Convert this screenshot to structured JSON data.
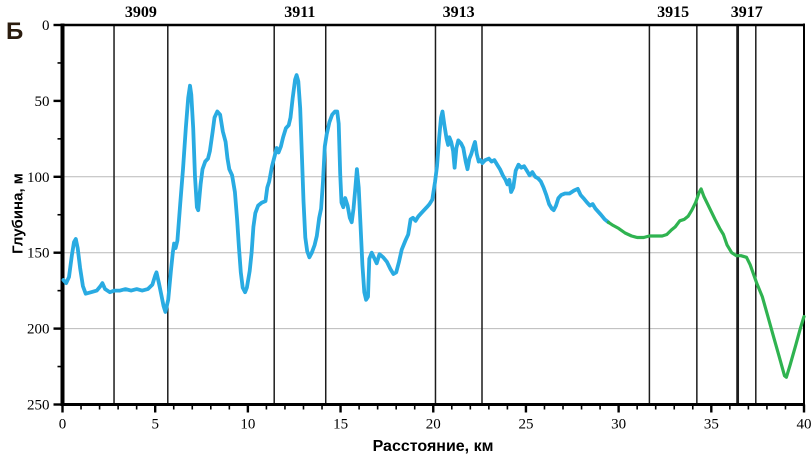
{
  "panel_label": "Б",
  "colors": {
    "blue": "#29abe2",
    "green": "#2fb350",
    "grid": "#b9b9b9",
    "axis": "#000000",
    "section_line": "#1c1c1c"
  },
  "chart_data": {
    "type": "line",
    "xlabel": "Расстояние, км",
    "ylabel": "Глубина, м",
    "xlim": [
      0,
      40
    ],
    "ylim": [
      0,
      250
    ],
    "y_inverted": true,
    "x_major_ticks": [
      0,
      5,
      10,
      15,
      20,
      25,
      30,
      35,
      40
    ],
    "x_minor_step": 1,
    "y_major_ticks": [
      0,
      50,
      100,
      150,
      200,
      250
    ],
    "y_minor_ticks": [
      25,
      75,
      125,
      175,
      225
    ],
    "gridlines_y": [
      100,
      150,
      200
    ],
    "legend": "none",
    "section_lines": [
      {
        "km": 2.78,
        "bold": false
      },
      {
        "km": 5.68,
        "bold": false
      },
      {
        "km": 11.42,
        "bold": false
      },
      {
        "km": 14.2,
        "bold": false
      },
      {
        "km": 20.12,
        "bold": false
      },
      {
        "km": 22.63,
        "bold": false
      },
      {
        "km": 31.66,
        "bold": false
      },
      {
        "km": 34.22,
        "bold": false
      },
      {
        "km": 36.42,
        "bold": true
      },
      {
        "km": 37.4,
        "bold": false
      }
    ],
    "section_labels": [
      {
        "label": "3909",
        "km": 4.23
      },
      {
        "label": "3911",
        "km": 12.8
      },
      {
        "label": "3913",
        "km": 21.37
      },
      {
        "label": "3915",
        "km": 32.94
      },
      {
        "label": "3917",
        "km": 36.91
      }
    ],
    "series": [
      {
        "name": "depth-profile-measured",
        "color_key": "blue",
        "width": 3.8,
        "points": [
          [
            0.05,
            168
          ],
          [
            0.2,
            170
          ],
          [
            0.35,
            166
          ],
          [
            0.5,
            152
          ],
          [
            0.62,
            143
          ],
          [
            0.72,
            141
          ],
          [
            0.82,
            147
          ],
          [
            0.95,
            160
          ],
          [
            1.1,
            172
          ],
          [
            1.25,
            177
          ],
          [
            1.55,
            176
          ],
          [
            1.85,
            175
          ],
          [
            2.05,
            172
          ],
          [
            2.15,
            170
          ],
          [
            2.3,
            174
          ],
          [
            2.55,
            176
          ],
          [
            2.8,
            175
          ],
          [
            3.1,
            175
          ],
          [
            3.4,
            174
          ],
          [
            3.7,
            175
          ],
          [
            4.0,
            174
          ],
          [
            4.3,
            175
          ],
          [
            4.6,
            174
          ],
          [
            4.85,
            171
          ],
          [
            5.0,
            165
          ],
          [
            5.07,
            163
          ],
          [
            5.2,
            170
          ],
          [
            5.32,
            177
          ],
          [
            5.45,
            185
          ],
          [
            5.55,
            189
          ],
          [
            5.7,
            181
          ],
          [
            5.85,
            162
          ],
          [
            5.95,
            150
          ],
          [
            6.02,
            144
          ],
          [
            6.1,
            147
          ],
          [
            6.2,
            142
          ],
          [
            6.35,
            118
          ],
          [
            6.5,
            95
          ],
          [
            6.65,
            68
          ],
          [
            6.78,
            48
          ],
          [
            6.88,
            40
          ],
          [
            6.95,
            46
          ],
          [
            7.05,
            68
          ],
          [
            7.15,
            100
          ],
          [
            7.25,
            120
          ],
          [
            7.32,
            122
          ],
          [
            7.45,
            105
          ],
          [
            7.55,
            95
          ],
          [
            7.7,
            90
          ],
          [
            7.85,
            88
          ],
          [
            7.95,
            83
          ],
          [
            8.1,
            70
          ],
          [
            8.2,
            61
          ],
          [
            8.35,
            57
          ],
          [
            8.5,
            59
          ],
          [
            8.65,
            70
          ],
          [
            8.8,
            77
          ],
          [
            8.9,
            88
          ],
          [
            9.0,
            95
          ],
          [
            9.15,
            99
          ],
          [
            9.3,
            110
          ],
          [
            9.42,
            128
          ],
          [
            9.52,
            147
          ],
          [
            9.62,
            163
          ],
          [
            9.72,
            173
          ],
          [
            9.85,
            176
          ],
          [
            9.95,
            173
          ],
          [
            10.1,
            162
          ],
          [
            10.2,
            150
          ],
          [
            10.3,
            133
          ],
          [
            10.4,
            124
          ],
          [
            10.55,
            119
          ],
          [
            10.75,
            117
          ],
          [
            10.95,
            116
          ],
          [
            11.05,
            107
          ],
          [
            11.15,
            103
          ],
          [
            11.3,
            93
          ],
          [
            11.45,
            86
          ],
          [
            11.55,
            81
          ],
          [
            11.65,
            84
          ],
          [
            11.78,
            80
          ],
          [
            11.9,
            74
          ],
          [
            12.05,
            68
          ],
          [
            12.2,
            66
          ],
          [
            12.3,
            61
          ],
          [
            12.42,
            48
          ],
          [
            12.55,
            36
          ],
          [
            12.63,
            33
          ],
          [
            12.72,
            37
          ],
          [
            12.82,
            55
          ],
          [
            12.92,
            88
          ],
          [
            13.0,
            116
          ],
          [
            13.1,
            140
          ],
          [
            13.2,
            149
          ],
          [
            13.32,
            153
          ],
          [
            13.45,
            150
          ],
          [
            13.6,
            145
          ],
          [
            13.72,
            139
          ],
          [
            13.85,
            127
          ],
          [
            13.95,
            121
          ],
          [
            14.05,
            103
          ],
          [
            14.15,
            80
          ],
          [
            14.25,
            72
          ],
          [
            14.4,
            64
          ],
          [
            14.55,
            59
          ],
          [
            14.7,
            57
          ],
          [
            14.82,
            57
          ],
          [
            14.9,
            65
          ],
          [
            14.98,
            98
          ],
          [
            15.05,
            117
          ],
          [
            15.15,
            120
          ],
          [
            15.25,
            114
          ],
          [
            15.38,
            119
          ],
          [
            15.5,
            127
          ],
          [
            15.6,
            130
          ],
          [
            15.7,
            121
          ],
          [
            15.8,
            107
          ],
          [
            15.88,
            95
          ],
          [
            15.98,
            107
          ],
          [
            16.08,
            133
          ],
          [
            16.18,
            158
          ],
          [
            16.28,
            176
          ],
          [
            16.38,
            181
          ],
          [
            16.48,
            179
          ],
          [
            16.55,
            154
          ],
          [
            16.68,
            150
          ],
          [
            16.8,
            153
          ],
          [
            16.95,
            157
          ],
          [
            17.1,
            151
          ],
          [
            17.3,
            153
          ],
          [
            17.5,
            156
          ],
          [
            17.7,
            161
          ],
          [
            17.85,
            164
          ],
          [
            18.0,
            163
          ],
          [
            18.15,
            156
          ],
          [
            18.3,
            148
          ],
          [
            18.5,
            142
          ],
          [
            18.65,
            138
          ],
          [
            18.78,
            128
          ],
          [
            18.9,
            127
          ],
          [
            19.05,
            129
          ],
          [
            19.2,
            126
          ],
          [
            19.35,
            124
          ],
          [
            19.5,
            122
          ],
          [
            19.65,
            120
          ],
          [
            19.8,
            118
          ],
          [
            19.95,
            115
          ],
          [
            20.1,
            103
          ],
          [
            20.2,
            93
          ],
          [
            20.32,
            74
          ],
          [
            20.42,
            61
          ],
          [
            20.5,
            57
          ],
          [
            20.6,
            66
          ],
          [
            20.72,
            75
          ],
          [
            20.8,
            79
          ],
          [
            20.87,
            74
          ],
          [
            20.97,
            77
          ],
          [
            21.07,
            83
          ],
          [
            21.15,
            94
          ],
          [
            21.25,
            81
          ],
          [
            21.35,
            76
          ],
          [
            21.5,
            78
          ],
          [
            21.62,
            81
          ],
          [
            21.75,
            90
          ],
          [
            21.85,
            95
          ],
          [
            21.95,
            88
          ],
          [
            22.05,
            85
          ],
          [
            22.17,
            80
          ],
          [
            22.25,
            77
          ],
          [
            22.35,
            85
          ],
          [
            22.45,
            90
          ],
          [
            22.55,
            89
          ],
          [
            22.65,
            91
          ],
          [
            22.8,
            89
          ],
          [
            23.0,
            88
          ],
          [
            23.15,
            90
          ],
          [
            23.3,
            89
          ],
          [
            23.45,
            92
          ],
          [
            23.6,
            95
          ],
          [
            23.75,
            99
          ],
          [
            23.9,
            102
          ],
          [
            24.0,
            105
          ],
          [
            24.1,
            102
          ],
          [
            24.2,
            110
          ],
          [
            24.32,
            107
          ],
          [
            24.45,
            96
          ],
          [
            24.6,
            92
          ],
          [
            24.75,
            94
          ],
          [
            24.9,
            93
          ],
          [
            25.05,
            96
          ],
          [
            25.2,
            99
          ],
          [
            25.35,
            97
          ],
          [
            25.5,
            100
          ],
          [
            25.65,
            101
          ],
          [
            25.8,
            103
          ],
          [
            25.95,
            107
          ],
          [
            26.1,
            112
          ],
          [
            26.25,
            118
          ],
          [
            26.4,
            121
          ],
          [
            26.5,
            122
          ],
          [
            26.62,
            119
          ],
          [
            26.75,
            114
          ],
          [
            26.9,
            112
          ],
          [
            27.1,
            111
          ],
          [
            27.35,
            111
          ],
          [
            27.6,
            109
          ],
          [
            27.8,
            108
          ],
          [
            27.95,
            112
          ],
          [
            28.1,
            114
          ],
          [
            28.3,
            117
          ],
          [
            28.45,
            119
          ],
          [
            28.6,
            118
          ],
          [
            28.75,
            121
          ],
          [
            28.9,
            123
          ],
          [
            29.05,
            125
          ],
          [
            29.25,
            128
          ],
          [
            29.45,
            130
          ]
        ]
      },
      {
        "name": "depth-profile-projected",
        "color_key": "green",
        "width": 3.2,
        "points": [
          [
            29.45,
            130
          ],
          [
            29.7,
            132
          ],
          [
            30.0,
            134
          ],
          [
            30.35,
            137
          ],
          [
            30.7,
            139
          ],
          [
            31.0,
            140
          ],
          [
            31.35,
            140
          ],
          [
            31.65,
            139
          ],
          [
            32.0,
            139
          ],
          [
            32.35,
            139
          ],
          [
            32.6,
            138
          ],
          [
            32.85,
            135
          ],
          [
            33.05,
            133
          ],
          [
            33.3,
            129
          ],
          [
            33.55,
            128
          ],
          [
            33.75,
            126
          ],
          [
            33.95,
            122
          ],
          [
            34.15,
            117
          ],
          [
            34.35,
            110
          ],
          [
            34.45,
            108
          ],
          [
            34.6,
            113
          ],
          [
            34.8,
            118
          ],
          [
            35.0,
            123
          ],
          [
            35.2,
            128
          ],
          [
            35.45,
            134
          ],
          [
            35.65,
            138
          ],
          [
            35.85,
            145
          ],
          [
            36.1,
            150
          ],
          [
            36.35,
            152
          ],
          [
            36.6,
            152
          ],
          [
            36.9,
            153
          ],
          [
            37.1,
            158
          ],
          [
            37.45,
            170
          ],
          [
            37.75,
            179
          ],
          [
            38.05,
            192
          ],
          [
            38.35,
            205
          ],
          [
            38.65,
            218
          ],
          [
            38.95,
            231
          ],
          [
            39.05,
            232
          ],
          [
            39.25,
            224
          ],
          [
            39.55,
            211
          ],
          [
            39.8,
            200
          ],
          [
            40.0,
            192
          ]
        ]
      }
    ]
  }
}
